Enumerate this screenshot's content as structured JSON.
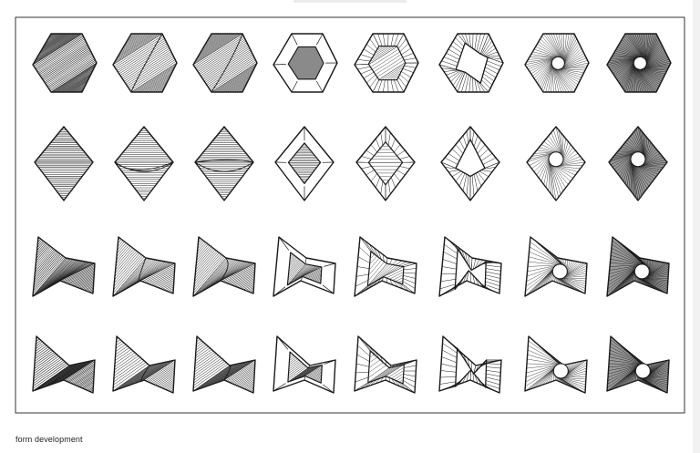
{
  "caption": "form development",
  "grid": {
    "rows": [
      {
        "label": "hexagon"
      },
      {
        "label": "diamond"
      },
      {
        "label": "twisted-quad"
      },
      {
        "label": "low-twisted-quad"
      }
    ],
    "columns": [
      {
        "label": "full-hatch"
      },
      {
        "label": "hatch-with-curve"
      },
      {
        "label": "hatch-with-curve-2"
      },
      {
        "label": "frame-with-core"
      },
      {
        "label": "frame-with-rays"
      },
      {
        "label": "frame-zigzag"
      },
      {
        "label": "radial-hole"
      },
      {
        "label": "dense-radial-hole"
      }
    ]
  },
  "colors": {
    "ink": "#1a1a1a",
    "frame": "#333333",
    "background": "#ffffff"
  }
}
